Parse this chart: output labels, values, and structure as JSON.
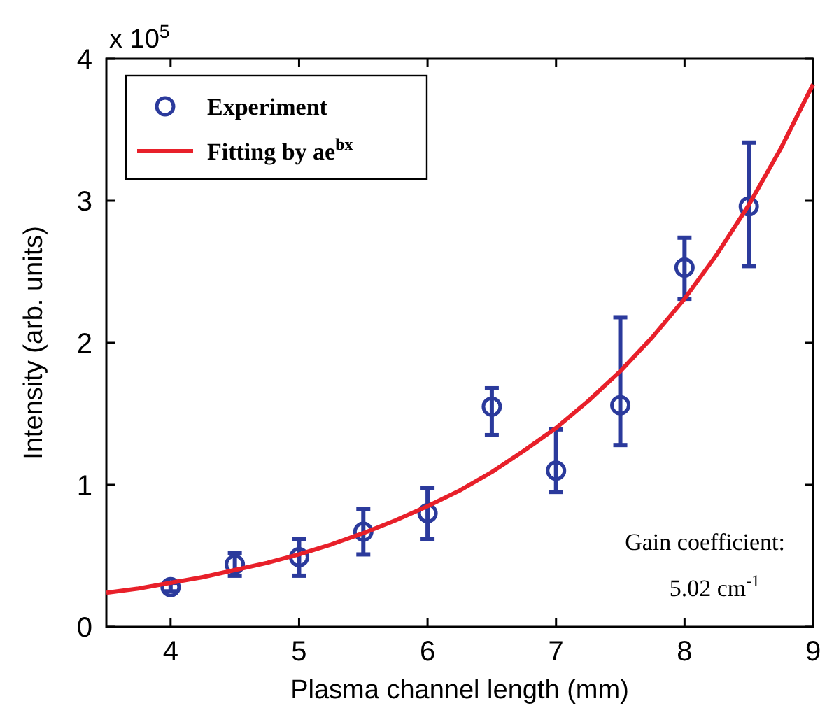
{
  "chart_data": {
    "type": "scatter",
    "xlabel": "Plasma channel length (mm)",
    "ylabel": "Intensity (arb. units)",
    "xlim": [
      3.5,
      9
    ],
    "ylim": [
      0,
      4
    ],
    "xticks": [
      4,
      5,
      6,
      7,
      8,
      9
    ],
    "yticks": [
      0,
      1,
      2,
      3,
      4
    ],
    "grid": false,
    "legend": "top left",
    "annotations": [
      "x 10$^{5}$",
      "Gain coefficient:",
      "5.02 cm$^{-1}$"
    ],
    "series": [
      {
        "name": "Experiment",
        "marker": "circle",
        "color": "#2b3a9c",
        "x": [
          4,
          4.5,
          5,
          5.5,
          6,
          6.5,
          7,
          7.5,
          8,
          8.5
        ],
        "values": [
          0.28,
          0.44,
          0.49,
          0.67,
          0.8,
          1.55,
          1.1,
          1.56,
          2.53,
          2.96
        ],
        "errors": [
          0.03,
          0.08,
          0.13,
          0.16,
          0.18,
          [
            1.35,
            1.68
          ],
          [
            0.95,
            1.39
          ],
          [
            1.28,
            2.18
          ],
          [
            2.31,
            2.74
          ],
          [
            2.54,
            3.41
          ]
        ]
      },
      {
        "name": "Fitting by ae$^{bx}$",
        "type": "line",
        "marker": "none",
        "line_style": "solid",
        "color": "#e8202a",
        "x": [
          3.5,
          3.75,
          4,
          4.25,
          4.5,
          4.75,
          5,
          5.25,
          5.5,
          5.75,
          6,
          6.25,
          6.5,
          6.75,
          7,
          7.25,
          7.5,
          7.75,
          8,
          8.25,
          8.5,
          8.75,
          9
        ],
        "values": [
          0.24,
          0.27,
          0.31,
          0.35,
          0.4,
          0.45,
          0.51,
          0.58,
          0.66,
          0.75,
          0.85,
          0.96,
          1.09,
          1.24,
          1.4,
          1.59,
          1.8,
          2.04,
          2.31,
          2.62,
          2.97,
          3.37,
          3.82
        ]
      }
    ]
  }
}
